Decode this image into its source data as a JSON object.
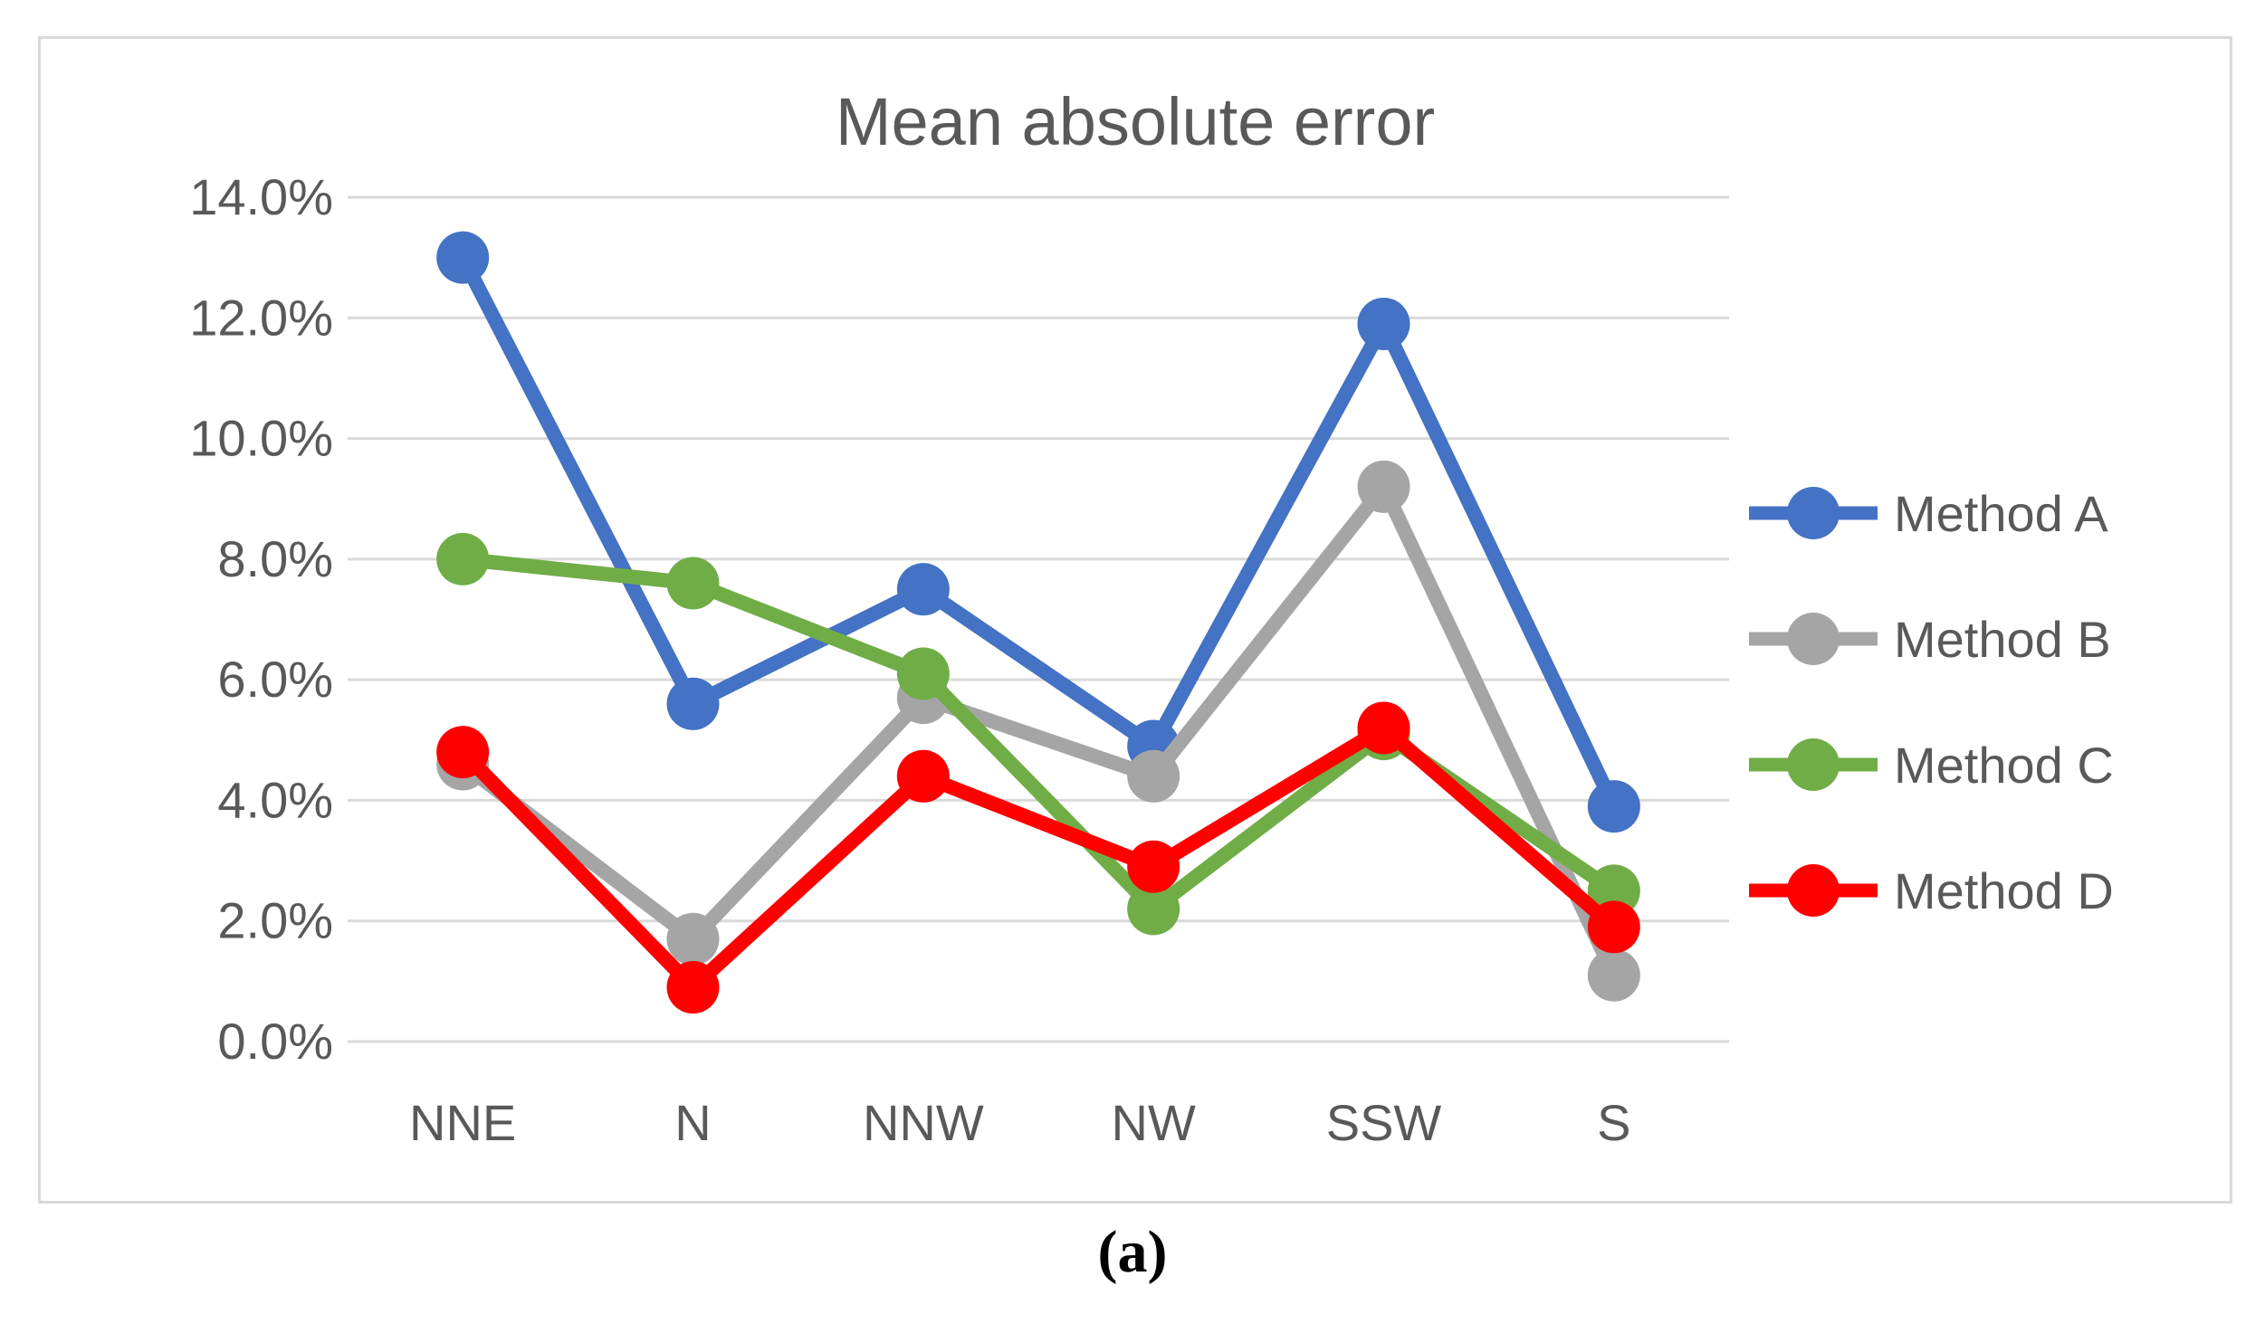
{
  "figure": {
    "caption": "(a)"
  },
  "chart_data": {
    "type": "line",
    "title": "Mean absolute error",
    "categories": [
      "NNE",
      "N",
      "NNW",
      "NW",
      "SSW",
      "S"
    ],
    "series": [
      {
        "name": "Method A",
        "color": "#4472C4",
        "values": [
          13.0,
          5.6,
          7.5,
          4.9,
          11.9,
          3.9
        ]
      },
      {
        "name": "Method B",
        "color": "#A5A5A5",
        "values": [
          4.6,
          1.7,
          5.7,
          4.4,
          9.2,
          1.1
        ]
      },
      {
        "name": "Method C",
        "color": "#70AD47",
        "values": [
          8.0,
          7.6,
          6.1,
          2.2,
          5.1,
          2.5
        ]
      },
      {
        "name": "Method D",
        "color": "#FF0000",
        "values": [
          4.8,
          0.9,
          4.4,
          2.9,
          5.2,
          1.9
        ]
      }
    ],
    "y_axis": {
      "min": 0,
      "max": 14,
      "step": 2,
      "tick_labels": [
        "0.0%",
        "2.0%",
        "4.0%",
        "6.0%",
        "8.0%",
        "10.0%",
        "12.0%",
        "14.0%"
      ],
      "unit": "percent"
    },
    "x_axis": {
      "label": ""
    },
    "legend": {
      "position": "right"
    },
    "grid": true
  },
  "palette": {
    "text": "#595959",
    "gridline": "#D9D9D9",
    "card_border": "#D9D9D9",
    "background": "#FFFFFF",
    "caption_color": "#000000"
  }
}
